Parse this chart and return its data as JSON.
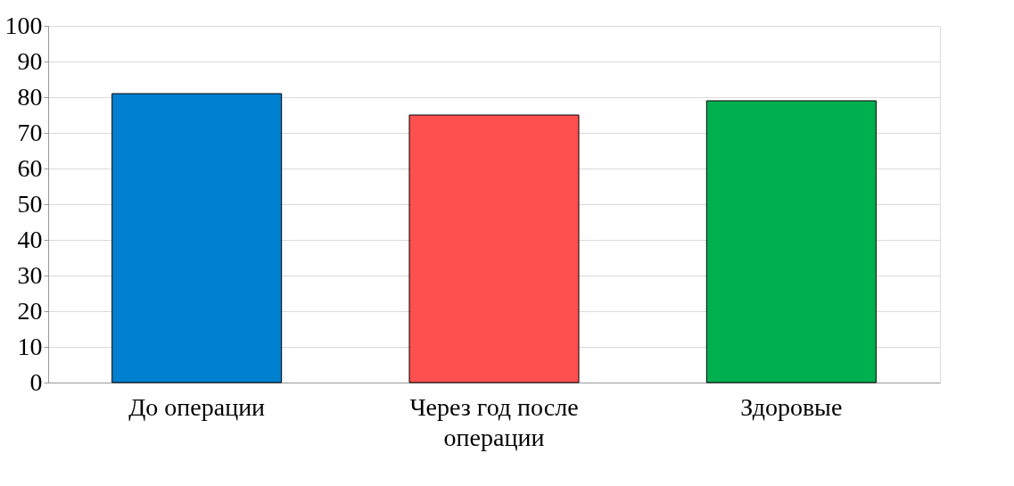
{
  "chart_data": {
    "type": "bar",
    "categories": [
      "До операции",
      "Через год после операции",
      "Здоровые"
    ],
    "values": [
      81,
      75,
      79
    ],
    "colors": [
      "#0080d0",
      "#ff5050",
      "#00b050"
    ],
    "ylim": [
      0,
      100
    ],
    "yticks": [
      0,
      10,
      20,
      30,
      40,
      50,
      60,
      70,
      80,
      90,
      100
    ],
    "grid": "y"
  }
}
